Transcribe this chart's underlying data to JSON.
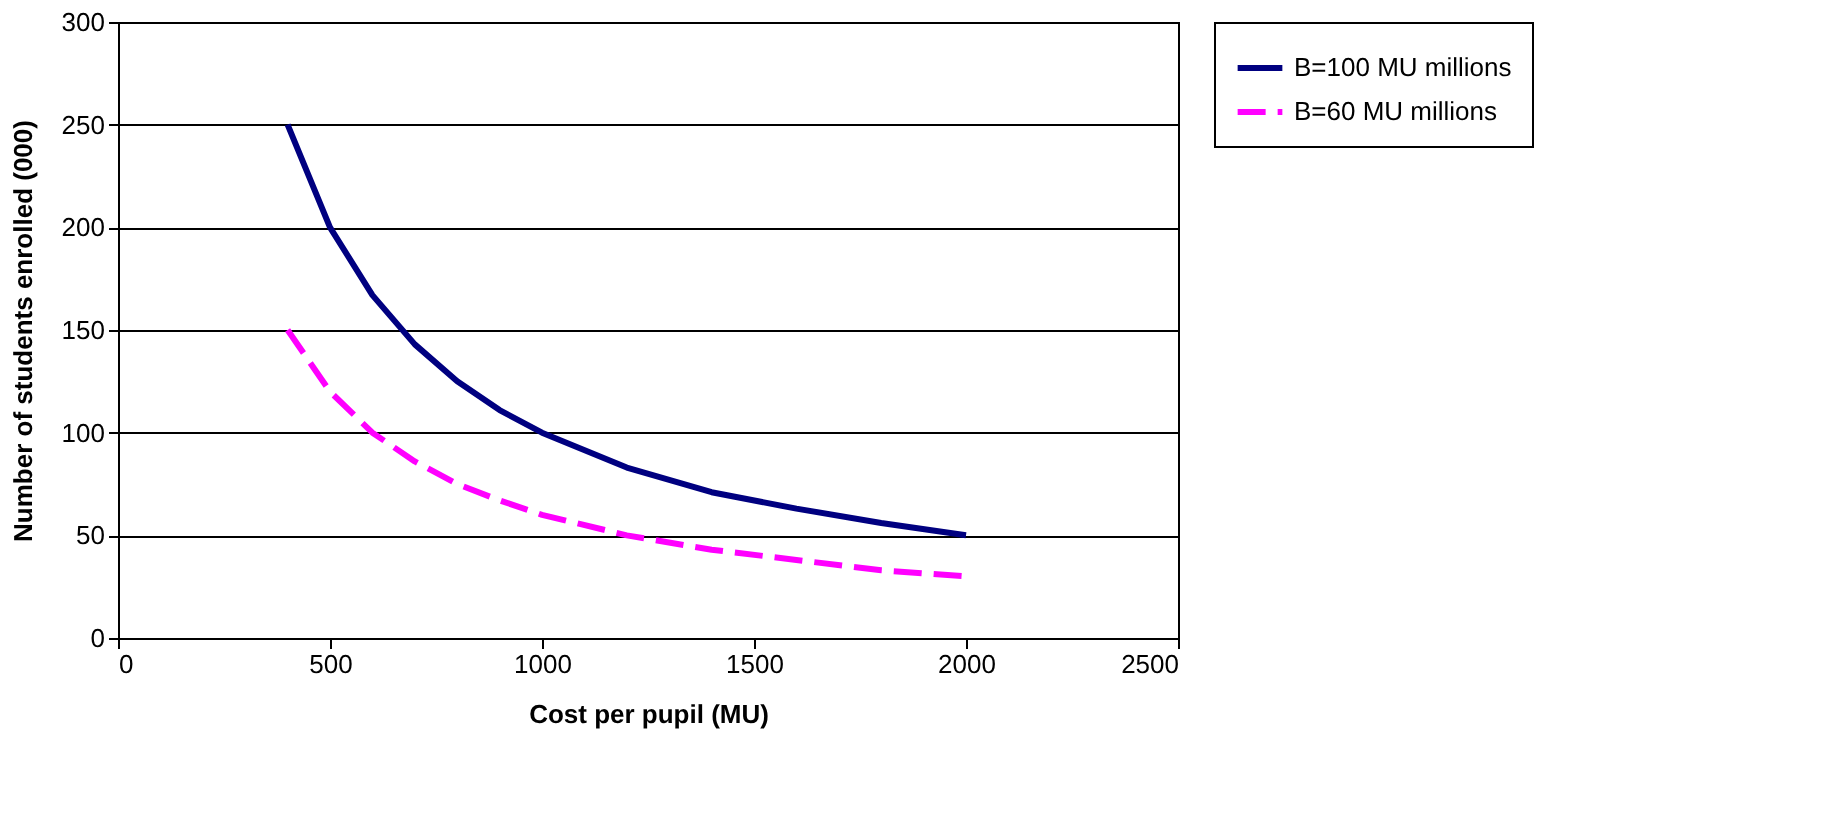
{
  "chart_data": {
    "type": "line",
    "xlabel": "Cost per pupil (MU)",
    "ylabel": "Number of students enrolled (000)",
    "x": [
      400,
      500,
      600,
      700,
      800,
      900,
      1000,
      1200,
      1400,
      1600,
      1800,
      2000
    ],
    "series": [
      {
        "name": "B=100 MU millions",
        "color": "#000080",
        "line_style": "solid",
        "values": [
          250,
          200,
          167,
          143,
          125,
          111,
          100,
          83,
          71,
          63,
          56,
          50
        ]
      },
      {
        "name": "B=60 MU millions",
        "color": "#ff00ff",
        "line_style": "dashed",
        "values": [
          150,
          120,
          100,
          86,
          75,
          67,
          60,
          50,
          43,
          38,
          33,
          30
        ]
      }
    ],
    "xlim": [
      0,
      2500
    ],
    "xticks": [
      0,
      500,
      1000,
      1500,
      2000,
      2500
    ],
    "ylim": [
      0,
      300
    ],
    "yticks": [
      0,
      50,
      100,
      150,
      200,
      250,
      300
    ],
    "grid": "y",
    "legend": "right",
    "marker": "none"
  }
}
